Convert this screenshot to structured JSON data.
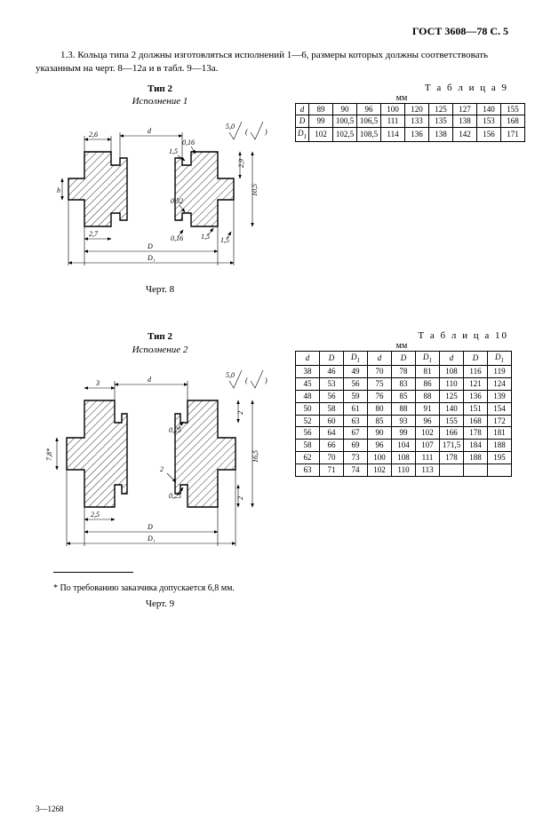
{
  "header": "ГОСТ 3608—78 С. 5",
  "para_1_3": "1.3. Кольца типа 2 должны изготовляться исполнений 1—6, размеры которых должны соответствовать указанным на черт. 8—12а и в табл. 9—13а.",
  "block1": {
    "type_label": "Тип  2",
    "exec_label": "Исполнение 1",
    "table_label": "Т а б л и ц а   9",
    "mm": "мм",
    "cherk": "Черт. 8",
    "surface_finish": "5,0",
    "table9": {
      "row_headers": [
        "d",
        "D",
        "D₁"
      ],
      "rows": [
        [
          "89",
          "90",
          "96",
          "100",
          "120",
          "125",
          "127",
          "140",
          "155"
        ],
        [
          "99",
          "100,5",
          "106,5",
          "111",
          "133",
          "135",
          "138",
          "153",
          "168"
        ],
        [
          "102",
          "102,5",
          "108,5",
          "114",
          "136",
          "138",
          "142",
          "156",
          "171"
        ]
      ]
    },
    "dims": {
      "d": "d",
      "D": "D",
      "D1": "D₁",
      "top_2_6": "2,6",
      "top_1_5": "1,5",
      "top_0_16": "0,16",
      "right_2_9": "2,9",
      "right_10_5": "10,5",
      "right_0_32": "0,32",
      "bot_2_7": "2,7",
      "bot_1_5_b": "1,5",
      "bot_0_16": "0,16",
      "bot_1_5_c": "1,5",
      "left_h": "h"
    }
  },
  "block2": {
    "type_label": "Тип  2",
    "exec_label": "Исполнение 2",
    "table_label": "Т а б л и ц а   10",
    "mm": "мм",
    "cherk": "Черт. 9",
    "surface_finish": "5,0",
    "table10": {
      "col_headers": [
        "d",
        "D",
        "D₁",
        "d",
        "D",
        "D₁",
        "d",
        "D",
        "D₁"
      ],
      "rows": [
        [
          "38",
          "46",
          "49",
          "70",
          "78",
          "81",
          "108",
          "116",
          "119"
        ],
        [
          "45",
          "53",
          "56",
          "75",
          "83",
          "86",
          "110",
          "121",
          "124"
        ],
        [
          "48",
          "56",
          "59",
          "76",
          "85",
          "88",
          "125",
          "136",
          "139"
        ],
        [
          "50",
          "58",
          "61",
          "80",
          "88",
          "91",
          "140",
          "151",
          "154"
        ],
        [
          "52",
          "60",
          "63",
          "85",
          "93",
          "96",
          "155",
          "168",
          "172"
        ],
        [
          "56",
          "64",
          "67",
          "90",
          "99",
          "102",
          "166",
          "178",
          "181"
        ],
        [
          "58",
          "66",
          "69",
          "96",
          "104",
          "107",
          "171,5",
          "184",
          "188"
        ],
        [
          "62",
          "70",
          "73",
          "100",
          "108",
          "111",
          "178",
          "188",
          "195"
        ],
        [
          "63",
          "71",
          "74",
          "102",
          "110",
          "113",
          "",
          "",
          ""
        ]
      ]
    },
    "dims": {
      "d": "d",
      "D": "D",
      "D1": "D₁",
      "top_3": "3",
      "right_2": "2",
      "right_16_5": "16,5",
      "right_0_25": "0,25",
      "bot_2_5": "2,5",
      "bot_0_25": "0,25",
      "left_7_8": "7,8*",
      "right_2_b": "2",
      "left_2": "2"
    }
  },
  "footnote": "* По требованию заказчика допускается 6,8 мм.",
  "bottom_code": "3—1268",
  "colors": {
    "ink": "#000000",
    "bg": "#ffffff"
  }
}
